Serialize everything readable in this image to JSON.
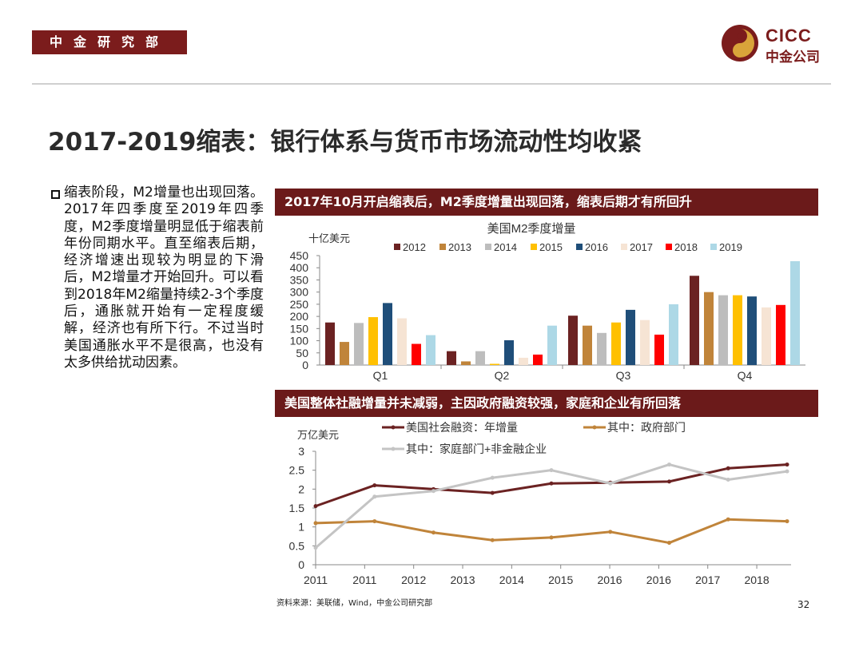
{
  "header": {
    "dept": "中金研究部",
    "logo_en": "CICC",
    "logo_cn": "中金公司"
  },
  "page_title": "2017-2019缩表：银行体系与货币市场流动性均收紧",
  "body_text": "缩表阶段，M2增量也出现回落。2017年四季度至2019年四季度，M2季度增量明显低于缩表前年份同期水平。直至缩表后期，经济增速出现较为明显的下滑后，M2增量才开始回升。可以看到2018年M2缩量持续2-3个季度后，通胀就开始有一定程度缓解，经济也有所下行。不过当时美国通胀水平不是很高，也没有太多供给扰动因素。",
  "chart1_banner": "2017年10月开启缩表后，M2季度增量出现回落，缩表后期才有所回升",
  "chart2_banner": "美国整体社融增量并未减弱，主因政府融资较强，家庭和企业有所回落",
  "colors": {
    "brand": "#7b1c1c",
    "banner": "#6b1a1a"
  },
  "chart_data": [
    {
      "type": "bar",
      "title": "美国M2季度增量",
      "ylabel": "十亿美元",
      "ylim": [
        0,
        450
      ],
      "yticks": [
        0,
        50,
        100,
        150,
        200,
        250,
        300,
        350,
        400,
        450
      ],
      "categories": [
        "Q1",
        "Q2",
        "Q3",
        "Q4"
      ],
      "series": [
        {
          "name": "2012",
          "color": "#6b2222",
          "values": [
            175,
            57,
            203,
            367
          ]
        },
        {
          "name": "2013",
          "color": "#c0843a",
          "values": [
            95,
            15,
            162,
            300
          ]
        },
        {
          "name": "2014",
          "color": "#bdbdbd",
          "values": [
            173,
            57,
            132,
            287
          ]
        },
        {
          "name": "2015",
          "color": "#ffc000",
          "values": [
            197,
            5,
            175,
            287
          ]
        },
        {
          "name": "2016",
          "color": "#1f4e79",
          "values": [
            255,
            102,
            227,
            282
          ]
        },
        {
          "name": "2017",
          "color": "#f6e4d4",
          "values": [
            192,
            30,
            185,
            237
          ]
        },
        {
          "name": "2018",
          "color": "#ff0000",
          "values": [
            87,
            43,
            125,
            247
          ]
        },
        {
          "name": "2019",
          "color": "#add8e6",
          "values": [
            123,
            162,
            250,
            427
          ]
        }
      ]
    },
    {
      "type": "line",
      "ylabel": "万亿美元",
      "ylim": [
        0,
        3
      ],
      "yticks": [
        "0",
        "0.5",
        "1",
        "1.5",
        "2",
        "2.5",
        "3"
      ],
      "x_labels": [
        "2011",
        "2011",
        "2012",
        "2013",
        "2014",
        "2015",
        "2016",
        "2016",
        "2017",
        "2018"
      ],
      "series": [
        {
          "name": "美国社会融资：年增量",
          "color": "#6b2222",
          "values": [
            1.55,
            2.1,
            2.0,
            1.9,
            2.15,
            2.17,
            2.2,
            2.55,
            2.65
          ]
        },
        {
          "name": "其中：政府部门",
          "color": "#c0843a",
          "values": [
            1.1,
            1.15,
            0.85,
            0.65,
            0.72,
            0.87,
            0.58,
            1.2,
            1.15
          ]
        },
        {
          "name": "其中：家庭部门+非金融企业",
          "color": "#c4c4c4",
          "values": [
            0.45,
            1.8,
            1.95,
            2.3,
            2.5,
            2.15,
            2.65,
            2.25,
            2.47
          ]
        }
      ]
    }
  ],
  "source": "资料来源：美联储，Wind，中金公司研究部",
  "page_number": "32"
}
